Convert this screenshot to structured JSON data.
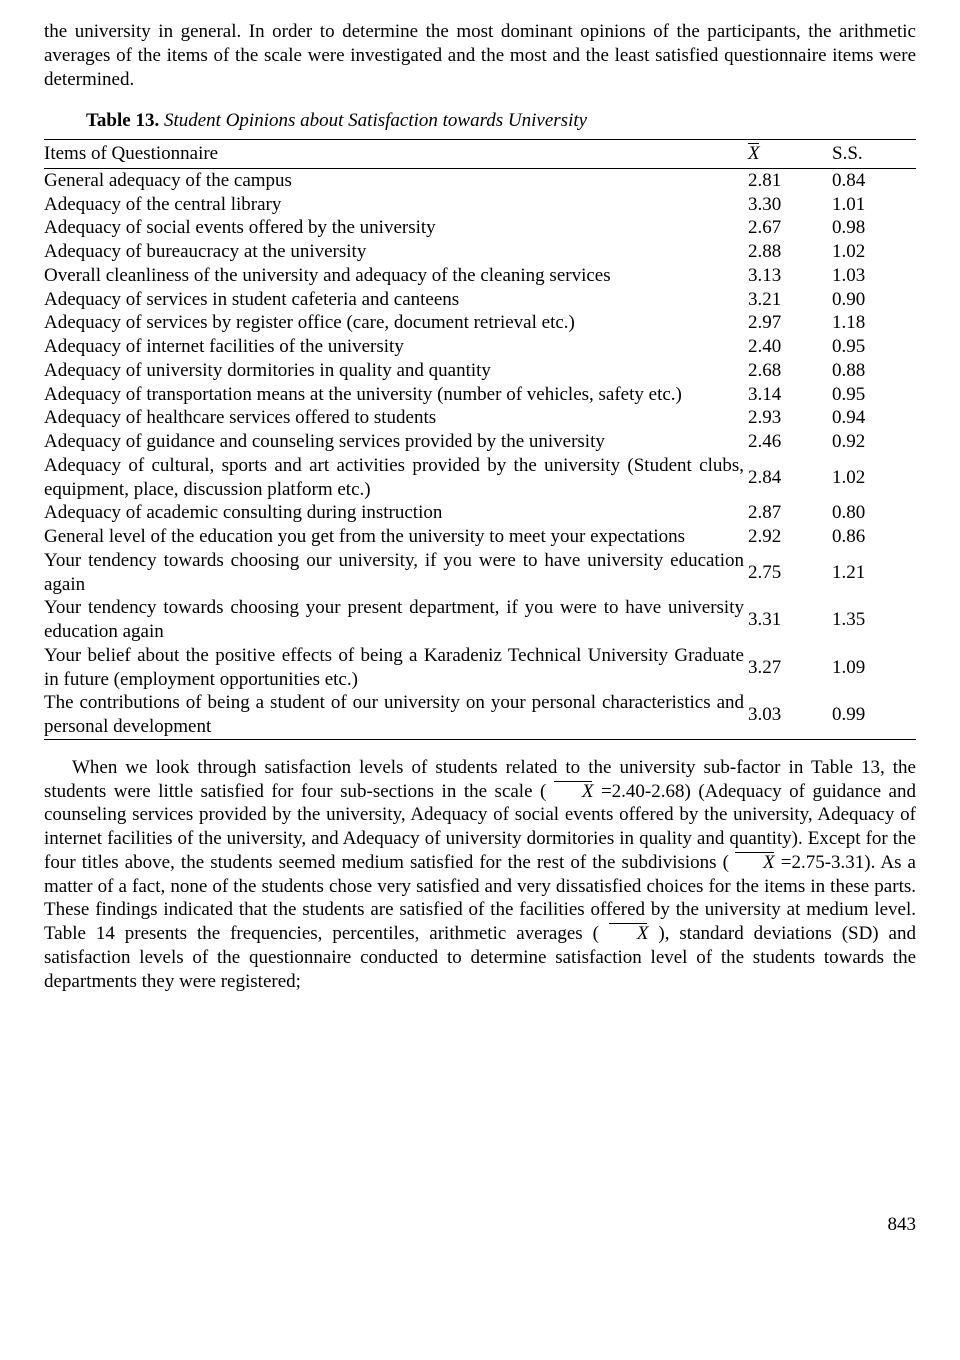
{
  "intro": "the university in general. In order to determine the most dominant opinions of the participants, the arithmetic averages of the items of the scale were investigated and the most and the least satisfied questionnaire items were determined.",
  "caption": {
    "label": "Table 13.",
    "title": "Student Opinions about Satisfaction towards University"
  },
  "table": {
    "headers": {
      "item": "Items of Questionnaire",
      "mean": "X",
      "ss": "S.S."
    },
    "rows": [
      {
        "item": "General adequacy of the campus",
        "mean": "2.81",
        "ss": "0.84"
      },
      {
        "item": "Adequacy of the central library",
        "mean": "3.30",
        "ss": "1.01"
      },
      {
        "item": "Adequacy of social events offered by the university",
        "mean": "2.67",
        "ss": "0.98"
      },
      {
        "item": "Adequacy of bureaucracy at the university",
        "mean": "2.88",
        "ss": "1.02"
      },
      {
        "item": "Overall cleanliness of the university and adequacy of the cleaning services",
        "mean": "3.13",
        "ss": "1.03"
      },
      {
        "item": "Adequacy of services in student cafeteria and canteens",
        "mean": "3.21",
        "ss": "0.90"
      },
      {
        "item": "Adequacy of services by register office (care, document retrieval etc.)",
        "mean": "2.97",
        "ss": "1.18"
      },
      {
        "item": "Adequacy of internet facilities of the university",
        "mean": "2.40",
        "ss": "0.95"
      },
      {
        "item": "Adequacy of university dormitories in quality and quantity",
        "mean": "2.68",
        "ss": "0.88"
      },
      {
        "item": "Adequacy of transportation means at the university (number of vehicles, safety etc.)",
        "mean": "3.14",
        "ss": "0.95"
      },
      {
        "item": "Adequacy of healthcare services offered to students",
        "mean": "2.93",
        "ss": "0.94"
      },
      {
        "item": "Adequacy of guidance and counseling services provided by the university",
        "mean": "2.46",
        "ss": "0.92"
      },
      {
        "item": "Adequacy of cultural, sports and art activities provided by the university (Student clubs, equipment, place, discussion platform etc.)",
        "mean": "2.84",
        "ss": "1.02"
      },
      {
        "item": "Adequacy of academic consulting during instruction",
        "mean": "2.87",
        "ss": "0.80"
      },
      {
        "item": "General level of the education you get from the university to meet your expectations",
        "mean": "2.92",
        "ss": "0.86"
      },
      {
        "item": "Your tendency towards choosing our university, if you were to have university education again",
        "mean": "2.75",
        "ss": "1.21"
      },
      {
        "item": "Your tendency towards choosing your present department, if you were to have university education again",
        "mean": "3.31",
        "ss": "1.35"
      },
      {
        "item": "Your belief about the positive effects of being a Karadeniz Technical University Graduate in future (employment opportunities etc.)",
        "mean": "3.27",
        "ss": "1.09"
      },
      {
        "item": "The contributions of being a student of our university on your personal characteristics and personal development",
        "mean": "3.03",
        "ss": "0.99"
      }
    ]
  },
  "discussion": {
    "s1": "When we look through satisfaction levels of students related to the university sub-factor in Table 13, the students were little satisfied for four sub-sections in the scale ( ",
    "s2": " =2.40-2.68) (Adequacy of guidance and counseling services provided by the university, Adequacy of social events offered by the university, Adequacy of internet facilities of the university, and Adequacy of university dormitories in quality and quantity). Except for the four titles above, the students seemed medium satisfied for the rest of the subdivisions ( ",
    "s3": " =2.75-3.31). As a matter of a fact, none of the students chose very satisfied and very dissatisfied choices for the items in these parts. These findings indicated that the students are satisfied of the facilities offered by the university at medium level. Table 14 presents the frequencies, percentiles, arithmetic averages ( ",
    "s4": " ), standard deviations (SD) and satisfaction levels of the questionnaire conducted to determine satisfaction level of the students towards the departments they were registered;",
    "xbar": "X"
  },
  "pagenum": "843"
}
